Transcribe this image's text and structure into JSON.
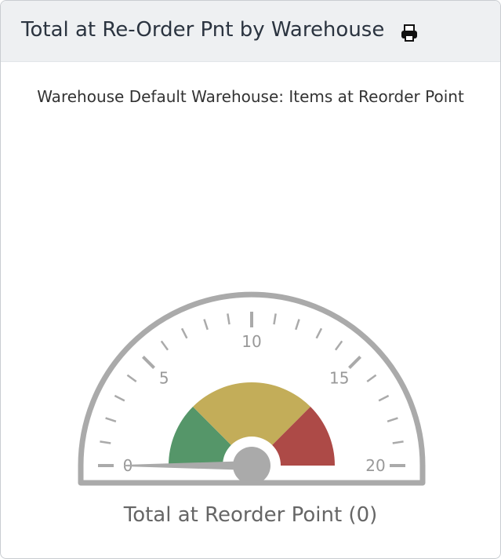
{
  "panel": {
    "title": "Total at Re-Order Pnt by Warehouse",
    "print_icon": "print-icon"
  },
  "chart_data": {
    "type": "gauge",
    "title": "Warehouse Default Warehouse: Items at Reorder Point",
    "label": "Total at Reorder Point (0)",
    "min": 0,
    "max": 20,
    "value": 0,
    "major_ticks": [
      "0",
      "5",
      "10",
      "15",
      "20"
    ],
    "minor_tick_interval": 1,
    "ranges": [
      {
        "from": 0,
        "to": 5,
        "color": "#559669"
      },
      {
        "from": 5,
        "to": 15,
        "color": "#c3ad59"
      },
      {
        "from": 15,
        "to": 20,
        "color": "#ad4a47"
      }
    ]
  }
}
